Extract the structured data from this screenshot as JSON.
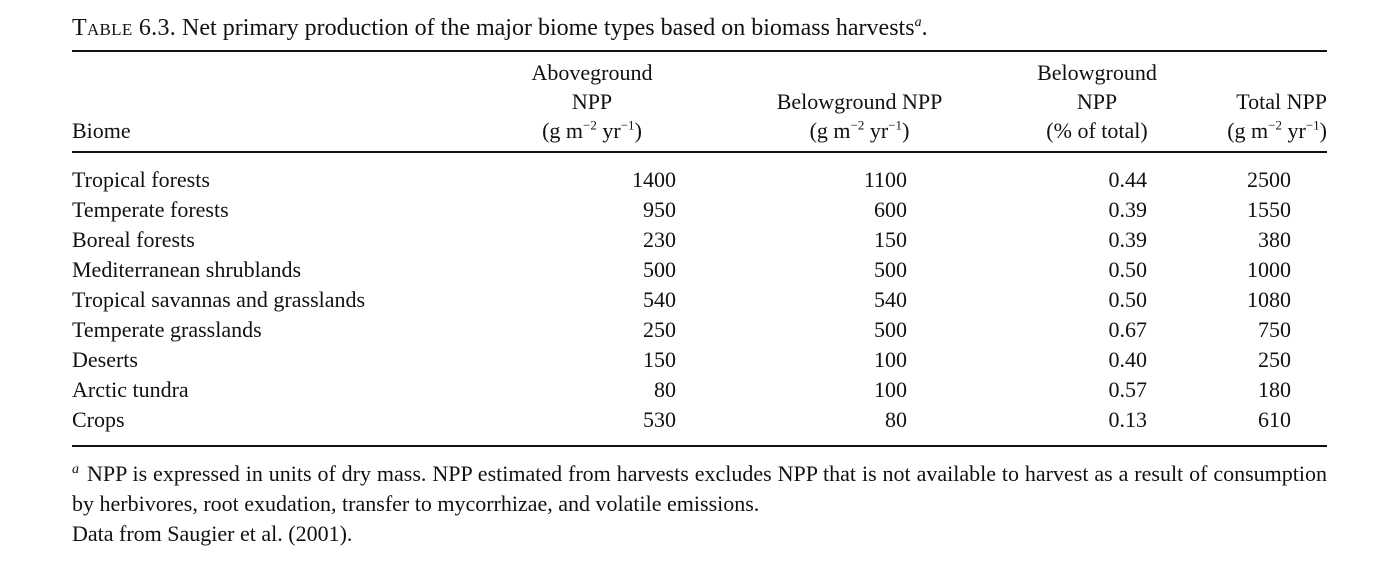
{
  "caption": {
    "label": "Table 6.3.",
    "text": "Net primary production of the major biome types based on biomass harvests",
    "note_marker": "a",
    "end": "."
  },
  "columns": {
    "biome": {
      "line1": "Biome"
    },
    "aboveground": {
      "line1": "Aboveground",
      "line2": "NPP",
      "unit": "(g m",
      "exp1": "−2",
      "mid": " yr",
      "exp2": "−1",
      "close": ")"
    },
    "belowground": {
      "line1": "Belowground NPP",
      "unit": "(g m",
      "exp1": "−2",
      "mid": " yr",
      "exp2": "−1",
      "close": ")"
    },
    "belowground_pct": {
      "line1": "Belowground",
      "line2": "NPP",
      "line3": "(% of total)"
    },
    "total": {
      "line1": "Total NPP",
      "unit": "(g m",
      "exp1": "−2",
      "mid": " yr",
      "exp2": "−1",
      "close": ")"
    }
  },
  "rows": [
    {
      "biome": "Tropical forests",
      "aboveground": "1400",
      "belowground": "1100",
      "pct": "0.44",
      "total": "2500"
    },
    {
      "biome": "Temperate forests",
      "aboveground": "950",
      "belowground": "600",
      "pct": "0.39",
      "total": "1550"
    },
    {
      "biome": "Boreal forests",
      "aboveground": "230",
      "belowground": "150",
      "pct": "0.39",
      "total": "380"
    },
    {
      "biome": "Mediterranean shrublands",
      "aboveground": "500",
      "belowground": "500",
      "pct": "0.50",
      "total": "1000"
    },
    {
      "biome": "Tropical savannas and grasslands",
      "aboveground": "540",
      "belowground": "540",
      "pct": "0.50",
      "total": "1080"
    },
    {
      "biome": "Temperate grasslands",
      "aboveground": "250",
      "belowground": "500",
      "pct": "0.67",
      "total": "750"
    },
    {
      "biome": "Deserts",
      "aboveground": "150",
      "belowground": "100",
      "pct": "0.40",
      "total": "250"
    },
    {
      "biome": "Arctic tundra",
      "aboveground": "80",
      "belowground": "100",
      "pct": "0.57",
      "total": "180"
    },
    {
      "biome": "Crops",
      "aboveground": "530",
      "belowground": "80",
      "pct": "0.13",
      "total": "610"
    }
  ],
  "footnotes": {
    "marker": "a",
    "note": "NPP is expressed in units of dry mass. NPP estimated from harvests excludes NPP that is not available to harvest as a result of consumption by herbivores, root exudation, transfer to mycorrhizae, and volatile emissions.",
    "source": "Data from Saugier et al. (2001)."
  }
}
